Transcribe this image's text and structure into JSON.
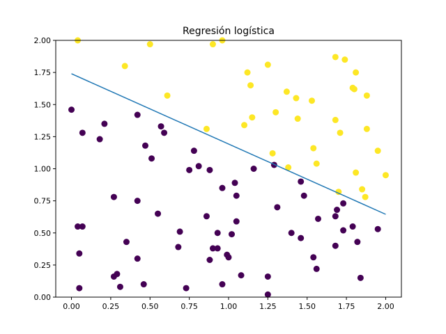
{
  "chart_data": {
    "type": "scatter",
    "title": "Regresión logística",
    "xlabel": "",
    "ylabel": "",
    "xlim": [
      -0.1,
      2.1
    ],
    "ylim": [
      0.0,
      2.0
    ],
    "xticks": [
      "0.00",
      "0.25",
      "0.50",
      "0.75",
      "1.00",
      "1.25",
      "1.50",
      "1.75",
      "2.00"
    ],
    "yticks": [
      "0.00",
      "0.25",
      "0.50",
      "0.75",
      "1.00",
      "1.25",
      "1.50",
      "1.75",
      "2.00"
    ],
    "grid": false,
    "colors": {
      "class_0": "#440154",
      "class_1": "#fde725",
      "line": "#1f77b4"
    },
    "series": [
      {
        "class": 0,
        "points": [
          [
            0.0,
            1.46
          ],
          [
            0.07,
            1.28
          ],
          [
            0.18,
            1.23
          ],
          [
            0.21,
            1.35
          ],
          [
            0.42,
            1.42
          ],
          [
            0.57,
            1.33
          ],
          [
            0.59,
            1.28
          ],
          [
            0.47,
            1.18
          ],
          [
            0.51,
            1.08
          ],
          [
            0.78,
            1.14
          ],
          [
            0.75,
            0.99
          ],
          [
            0.81,
            1.02
          ],
          [
            0.88,
            0.99
          ],
          [
            1.16,
            1.0
          ],
          [
            1.29,
            1.03
          ],
          [
            1.46,
            0.9
          ],
          [
            0.96,
            0.85
          ],
          [
            1.04,
            0.89
          ],
          [
            1.05,
            0.79
          ],
          [
            1.48,
            0.79
          ],
          [
            0.27,
            0.78
          ],
          [
            0.42,
            0.75
          ],
          [
            0.04,
            0.55
          ],
          [
            0.07,
            0.55
          ],
          [
            0.55,
            0.65
          ],
          [
            0.86,
            0.63
          ],
          [
            1.31,
            0.7
          ],
          [
            1.05,
            0.59
          ],
          [
            1.57,
            0.61
          ],
          [
            1.69,
            0.68
          ],
          [
            1.73,
            0.73
          ],
          [
            1.68,
            0.63
          ],
          [
            1.73,
            0.52
          ],
          [
            1.79,
            0.55
          ],
          [
            1.95,
            0.53
          ],
          [
            0.69,
            0.51
          ],
          [
            0.93,
            0.5
          ],
          [
            1.02,
            0.49
          ],
          [
            1.4,
            0.5
          ],
          [
            1.46,
            0.46
          ],
          [
            1.82,
            0.43
          ],
          [
            1.68,
            0.4
          ],
          [
            0.35,
            0.43
          ],
          [
            0.68,
            0.39
          ],
          [
            0.9,
            0.38
          ],
          [
            0.93,
            0.38
          ],
          [
            0.05,
            0.34
          ],
          [
            0.99,
            0.33
          ],
          [
            1.0,
            0.31
          ],
          [
            0.42,
            0.3
          ],
          [
            0.88,
            0.29
          ],
          [
            1.54,
            0.31
          ],
          [
            1.56,
            0.22
          ],
          [
            0.27,
            0.16
          ],
          [
            0.29,
            0.18
          ],
          [
            1.08,
            0.17
          ],
          [
            1.25,
            0.16
          ],
          [
            1.84,
            0.15
          ],
          [
            0.31,
            0.08
          ],
          [
            0.46,
            0.1
          ],
          [
            0.96,
            0.1
          ],
          [
            0.05,
            0.07
          ],
          [
            0.73,
            0.07
          ],
          [
            1.25,
            0.02
          ]
        ]
      },
      {
        "class": 1,
        "points": [
          [
            0.04,
            2.0
          ],
          [
            0.5,
            1.97
          ],
          [
            0.9,
            1.97
          ],
          [
            0.96,
            2.0
          ],
          [
            0.34,
            1.8
          ],
          [
            0.61,
            1.57
          ],
          [
            0.86,
            1.31
          ],
          [
            1.12,
            1.75
          ],
          [
            1.14,
            1.65
          ],
          [
            1.25,
            1.81
          ],
          [
            1.37,
            1.6
          ],
          [
            1.43,
            1.55
          ],
          [
            1.53,
            1.53
          ],
          [
            1.68,
            1.87
          ],
          [
            1.74,
            1.85
          ],
          [
            1.81,
            1.75
          ],
          [
            1.79,
            1.63
          ],
          [
            1.8,
            1.62
          ],
          [
            1.88,
            1.57
          ],
          [
            1.15,
            1.4
          ],
          [
            1.3,
            1.44
          ],
          [
            1.44,
            1.39
          ],
          [
            1.68,
            1.38
          ],
          [
            1.71,
            1.28
          ],
          [
            1.1,
            1.34
          ],
          [
            1.88,
            1.31
          ],
          [
            1.54,
            1.16
          ],
          [
            1.95,
            1.14
          ],
          [
            1.28,
            1.12
          ],
          [
            1.56,
            1.04
          ],
          [
            1.38,
            1.01
          ],
          [
            1.81,
            0.97
          ],
          [
            2.0,
            0.95
          ],
          [
            1.7,
            0.82
          ],
          [
            1.85,
            0.84
          ],
          [
            1.87,
            0.78
          ]
        ]
      }
    ],
    "decision_line": {
      "x": [
        0.0,
        2.0
      ],
      "y": [
        1.74,
        0.645
      ]
    }
  }
}
